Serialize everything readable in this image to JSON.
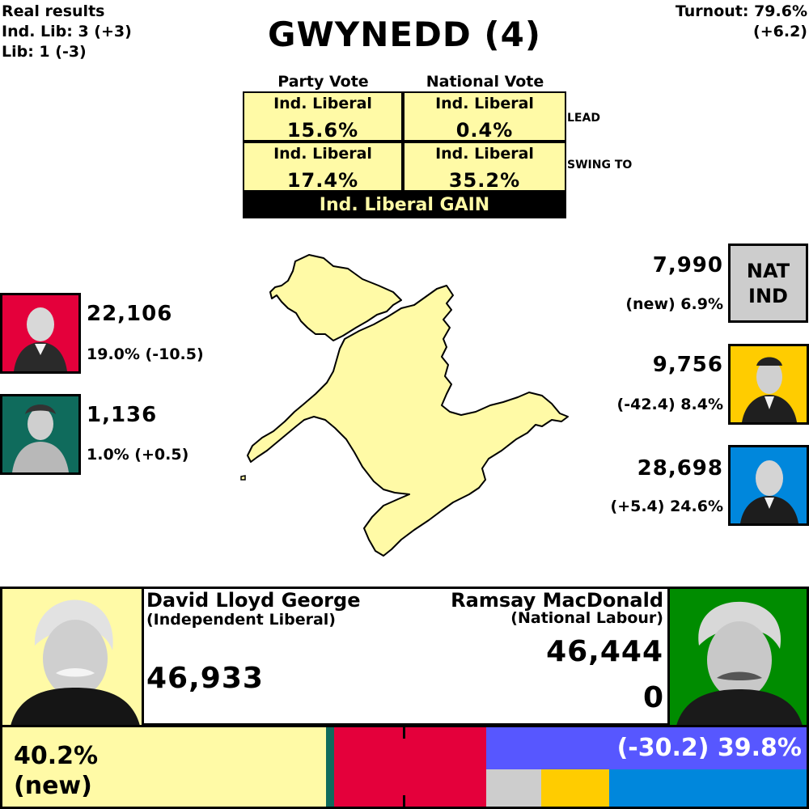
{
  "real_results": {
    "label": "Real results",
    "line1": "Ind. Lib: 3 (+3)",
    "line2": "Lib: 1 (-3)"
  },
  "turnout": {
    "line1": "Turnout: 79.6%",
    "line2": "(+6.2)"
  },
  "title": "GWYNEDD (4)",
  "vote_table": {
    "col1_header": "Party Vote",
    "col2_header": "National Vote",
    "lead": {
      "label": "LEAD",
      "party_name": "Ind. Liberal",
      "party_pct": "15.6%",
      "national_name": "Ind. Liberal",
      "national_pct": "0.4%"
    },
    "swing": {
      "label": "SWING TO",
      "party_name": "Ind. Liberal",
      "party_pct": "17.4%",
      "national_name": "Ind. Liberal",
      "national_pct": "35.2%"
    },
    "result": "Ind. Liberal GAIN"
  },
  "left_parties": [
    {
      "votes": "22,106",
      "pct": "19.0% (-10.5)",
      "color": "#e4003b"
    },
    {
      "votes": "1,136",
      "pct": "1.0% (+0.5)",
      "color": "#0f6b5c"
    }
  ],
  "right_parties": [
    {
      "badge": "NAT\nIND",
      "badge_line1": "NAT",
      "badge_line2": "IND",
      "votes": "7,990",
      "pct": "(new) 6.9%",
      "color": "#cdcdcd"
    },
    {
      "votes": "9,756",
      "pct": "(-42.4) 8.4%",
      "color": "#ffcc00"
    },
    {
      "votes": "28,698",
      "pct": "(+5.4) 24.6%",
      "color": "#0087dc"
    }
  ],
  "winner": {
    "name": "David Lloyd George",
    "party": "(Independent Liberal)",
    "votes": "46,933",
    "color": "#fffaa6"
  },
  "runner_up": {
    "name": "Ramsay MacDonald",
    "party": "(National Labour)",
    "votes": "46,444",
    "change": "0",
    "color": "#008c00"
  },
  "bar": {
    "left_pct": "40.2%",
    "left_change": "(new)",
    "right_label": "(-30.2) 39.8%",
    "colors": {
      "winner": "#fffaa6",
      "grn": "#0f6b5c",
      "red": "#e4003b",
      "blue": "#5757ff",
      "grey": "#cdcdcd",
      "yellow": "#ffcc00",
      "lightblue": "#0087dc"
    }
  }
}
